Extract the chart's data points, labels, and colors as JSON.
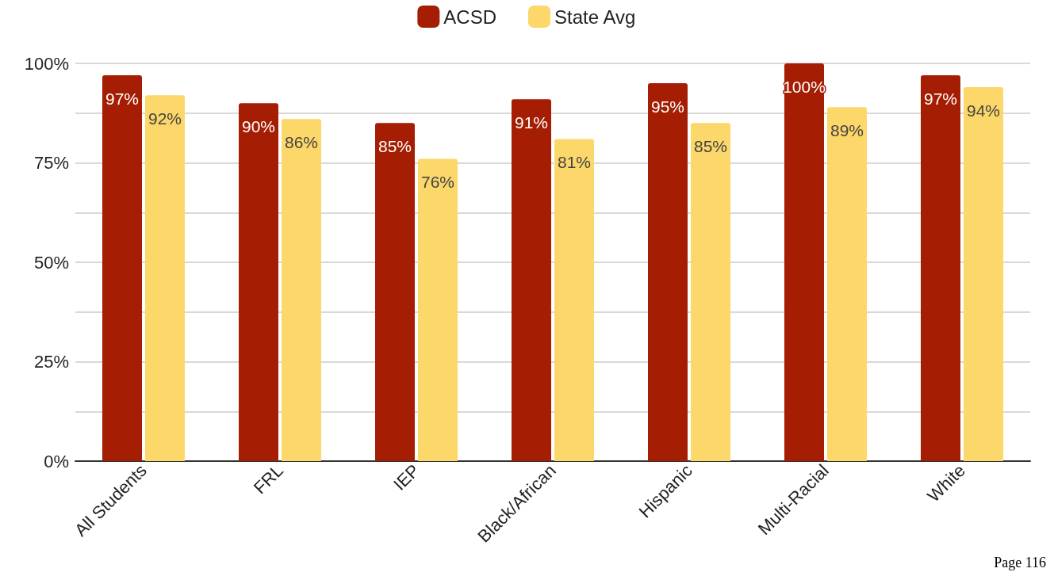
{
  "chart_data": {
    "type": "bar",
    "categories": [
      "All Students",
      "FRL",
      "IEP",
      "Black/African",
      "Hispanic",
      "Multi-Racial",
      "White"
    ],
    "series": [
      {
        "name": "ACSD",
        "color": "#a51d02",
        "values": [
          97,
          90,
          85,
          91,
          95,
          100,
          97
        ],
        "value_labels": [
          "97%",
          "90%",
          "85%",
          "91%",
          "95%",
          "100%",
          "97%"
        ]
      },
      {
        "name": "State Avg",
        "color": "#fcd769",
        "values": [
          92,
          86,
          76,
          81,
          85,
          89,
          94
        ],
        "value_labels": [
          "92%",
          "86%",
          "76%",
          "81%",
          "85%",
          "89%",
          "94%"
        ]
      }
    ],
    "ylim": [
      0,
      100
    ],
    "yticks": [
      {
        "value": 0,
        "label": "0%"
      },
      {
        "value": 12.5,
        "label": null
      },
      {
        "value": 25,
        "label": "25%"
      },
      {
        "value": 37.5,
        "label": null
      },
      {
        "value": 50,
        "label": "50%"
      },
      {
        "value": 62.5,
        "label": null
      },
      {
        "value": 75,
        "label": "75%"
      },
      {
        "value": 87.5,
        "label": null
      },
      {
        "value": 100,
        "label": "100%"
      }
    ],
    "grid": "y",
    "legend": "top",
    "annotations": [
      "Page 116"
    ]
  }
}
